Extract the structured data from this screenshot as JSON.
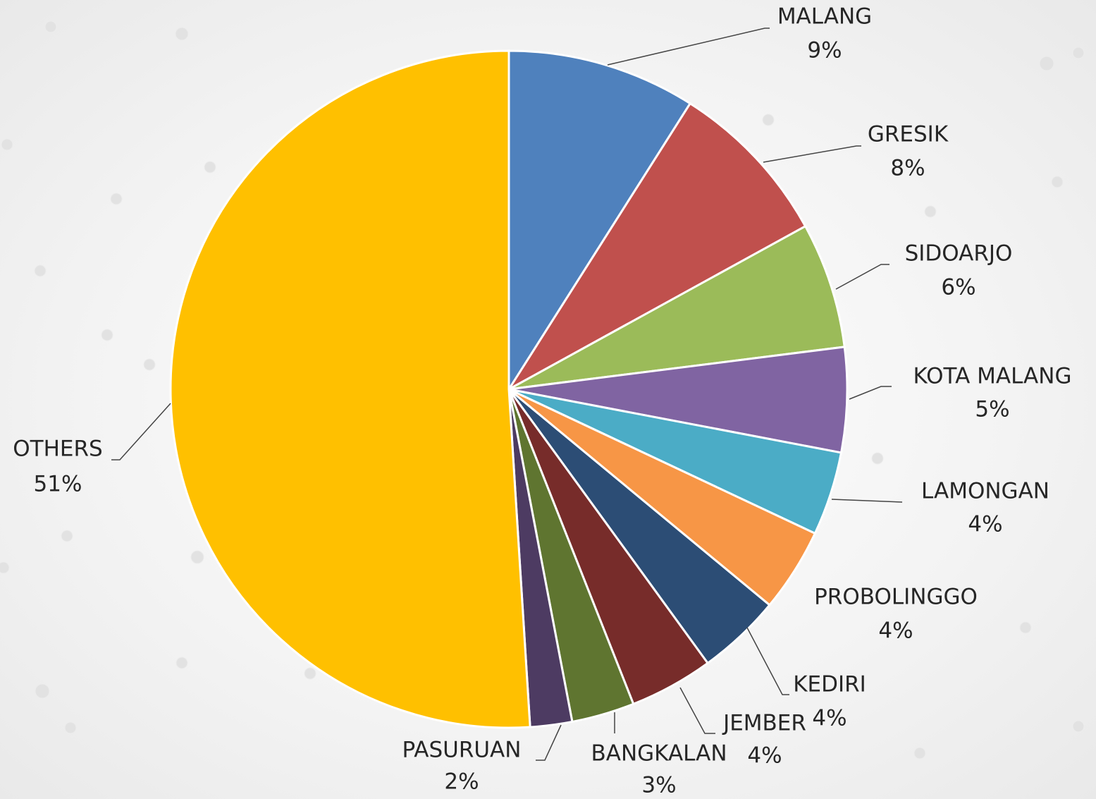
{
  "chart_data": {
    "type": "pie",
    "categories": [
      "MALANG",
      "GRESIK",
      "SIDOARJO",
      "KOTA MALANG",
      "LAMONGAN",
      "PROBOLINGGO",
      "KEDIRI",
      "JEMBER",
      "BANGKALAN",
      "PASURUAN",
      "OTHERS"
    ],
    "values": [
      9,
      8,
      6,
      5,
      4,
      4,
      4,
      4,
      3,
      2,
      51
    ],
    "value_labels": [
      "9%",
      "8%",
      "6%",
      "5%",
      "4%",
      "4%",
      "4%",
      "4%",
      "3%",
      "2%",
      "51%"
    ],
    "colors": [
      "#4f81bd",
      "#c0504d",
      "#9bbb59",
      "#8064a2",
      "#4bacc6",
      "#f79646",
      "#2c4d75",
      "#772c2a",
      "#5f7530",
      "#4d3b62",
      "#ffc000"
    ]
  }
}
